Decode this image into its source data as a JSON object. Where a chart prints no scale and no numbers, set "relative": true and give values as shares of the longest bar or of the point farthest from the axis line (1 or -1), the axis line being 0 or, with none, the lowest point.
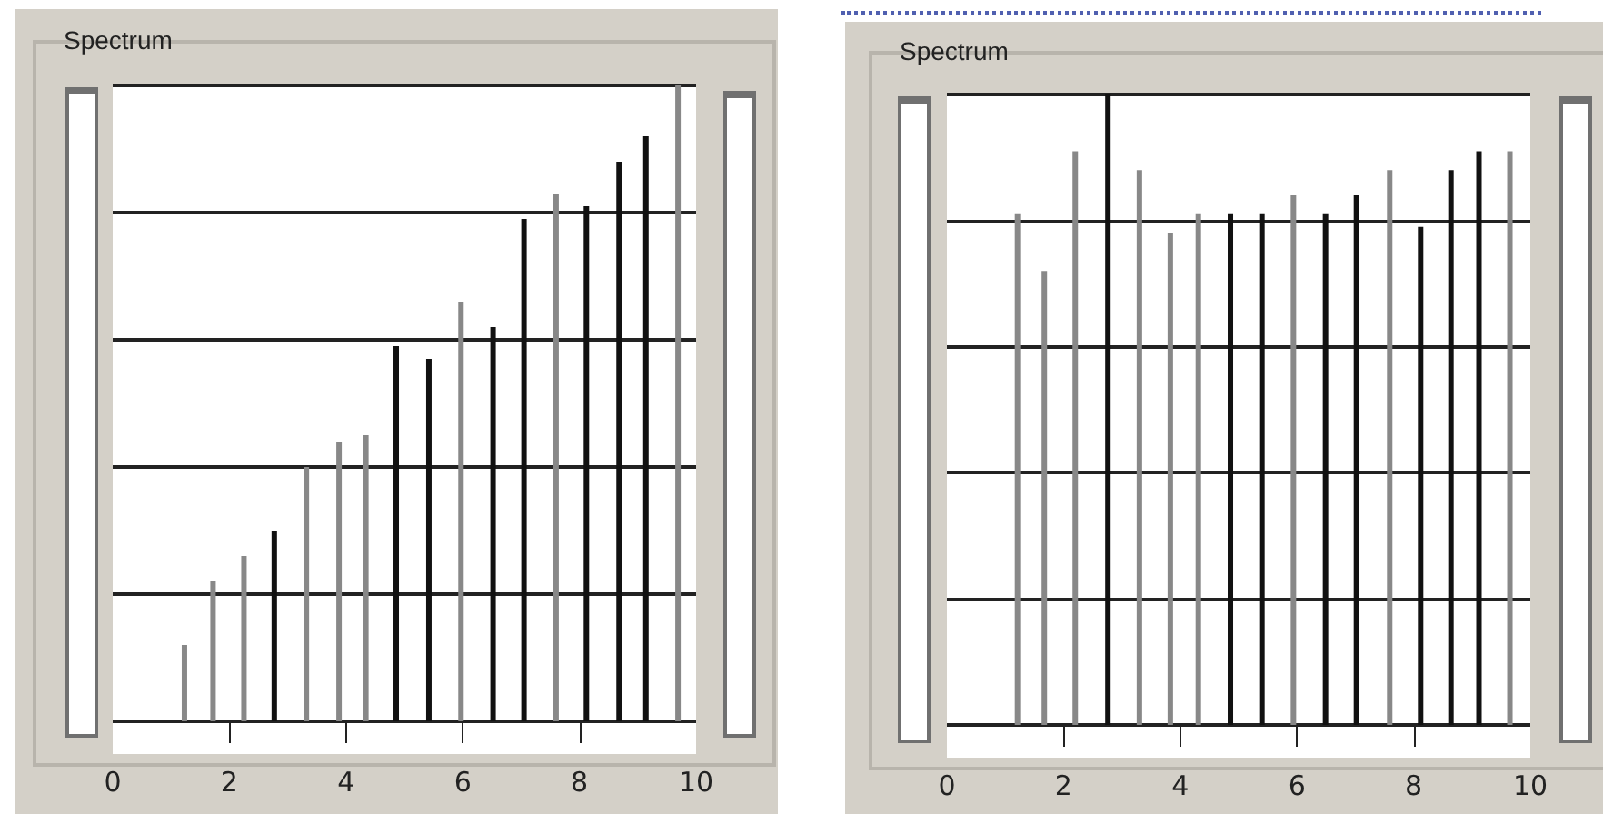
{
  "chart_data": [
    {
      "type": "bar",
      "title": "Spectrum",
      "relative": true,
      "grid": "y",
      "tick_labels": "x",
      "xlim": [
        0,
        10
      ],
      "xticks": [
        0,
        2,
        4,
        6,
        8,
        10
      ],
      "x": [
        1.23,
        1.72,
        2.25,
        2.77,
        3.32,
        3.88,
        4.34,
        4.86,
        5.42,
        5.97,
        6.52,
        7.05,
        7.6,
        8.12,
        8.68,
        9.14,
        9.69
      ],
      "values": [
        0.12,
        0.22,
        0.26,
        0.3,
        0.4,
        0.44,
        0.45,
        0.59,
        0.57,
        0.66,
        0.62,
        0.79,
        0.83,
        0.81,
        0.88,
        0.92,
        1
      ],
      "colors": [
        "#888888",
        "#888888",
        "#888888",
        "#111111",
        "#888888",
        "#888888",
        "#888888",
        "#111111",
        "#111111",
        "#888888",
        "#111111",
        "#111111",
        "#888888",
        "#111111",
        "#111111",
        "#111111",
        "#888888"
      ]
    },
    {
      "type": "bar",
      "title": "Spectrum",
      "relative": true,
      "grid": "y",
      "tick_labels": "x",
      "xlim": [
        0,
        10
      ],
      "xticks": [
        0,
        2,
        4,
        6,
        8,
        10
      ],
      "x": [
        1.21,
        1.67,
        2.2,
        2.76,
        3.3,
        3.83,
        4.31,
        4.86,
        5.4,
        5.94,
        6.49,
        7.02,
        7.59,
        8.12,
        8.64,
        9.12,
        9.65
      ],
      "values": [
        0.81,
        0.72,
        0.91,
        1,
        0.88,
        0.78,
        0.81,
        0.81,
        0.81,
        0.84,
        0.81,
        0.84,
        0.88,
        0.79,
        0.88,
        0.91,
        0.91
      ],
      "colors": [
        "#888888",
        "#888888",
        "#888888",
        "#111111",
        "#888888",
        "#888888",
        "#888888",
        "#111111",
        "#111111",
        "#888888",
        "#111111",
        "#111111",
        "#888888",
        "#111111",
        "#111111",
        "#111111",
        "#888888"
      ]
    }
  ]
}
